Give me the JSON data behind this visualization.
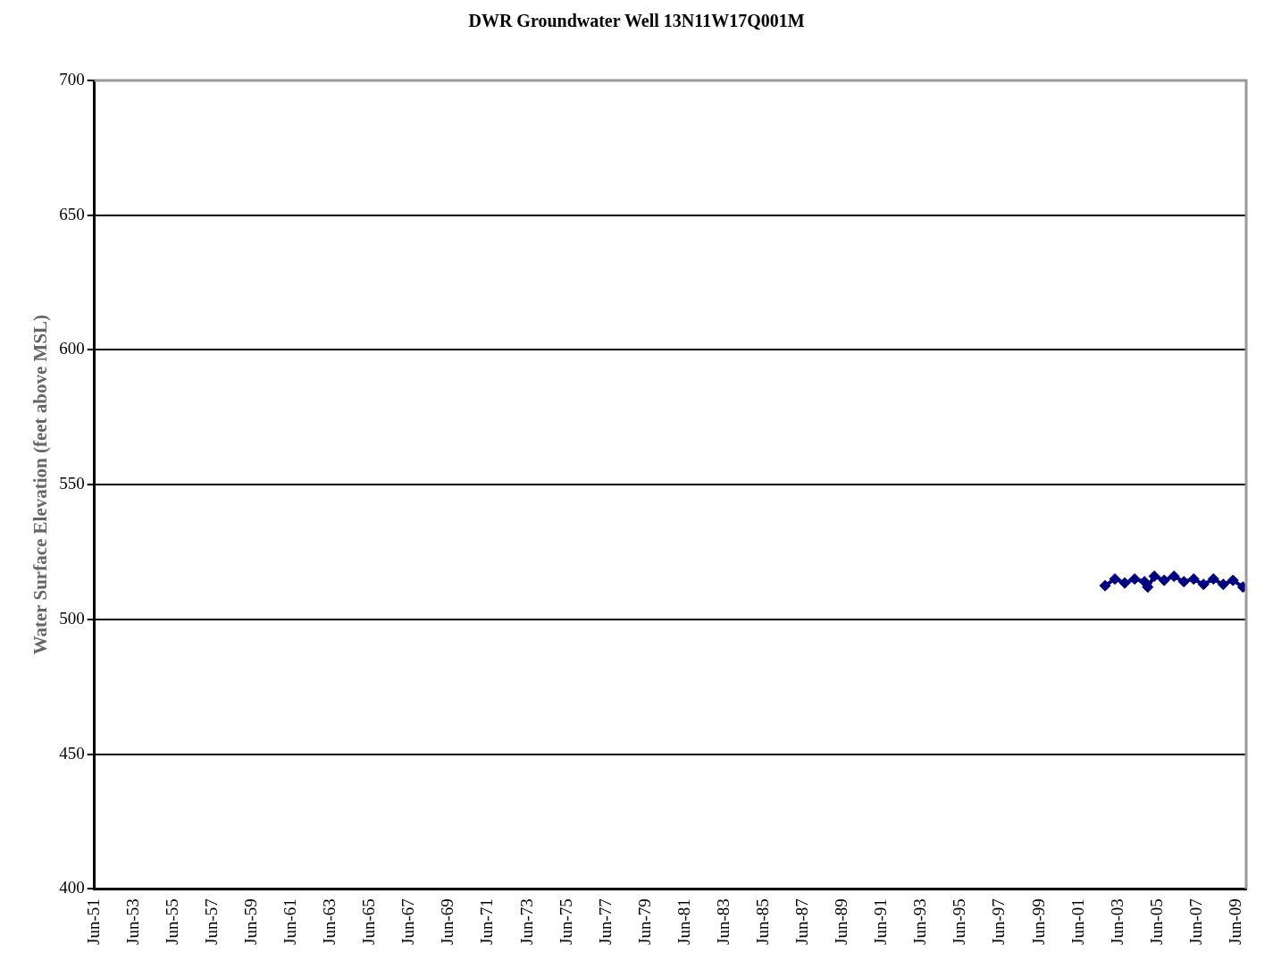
{
  "chart_data": {
    "type": "line",
    "title": "DWR Groundwater Well 13N11W17Q001M",
    "ylabel": "Water Surface Elevation (feet above MSL)",
    "x": [
      "2002-10",
      "2003-04",
      "2003-10",
      "2004-04",
      "2004-10",
      "2004-12",
      "2005-04",
      "2005-10",
      "2006-04",
      "2006-10",
      "2007-04",
      "2007-10",
      "2008-04",
      "2008-10",
      "2009-04",
      "2009-10"
    ],
    "series": [
      {
        "color": "#000080",
        "values": [
          512.5,
          515,
          513.5,
          515,
          514,
          512,
          516,
          514.5,
          516,
          514,
          515,
          513,
          515,
          513,
          514.5,
          512
        ]
      }
    ],
    "marker": "diamond",
    "grid": "y",
    "legend": false,
    "ylim": [
      400,
      700
    ],
    "yticks": [
      400,
      450,
      500,
      550,
      600,
      650,
      700
    ],
    "xlim": [
      "1951-06",
      "2009-12"
    ],
    "xticks": [
      {
        "value": "1951-06",
        "label": "Jun-51"
      },
      {
        "value": "1953-06",
        "label": "Jun-53"
      },
      {
        "value": "1955-06",
        "label": "Jun-55"
      },
      {
        "value": "1957-06",
        "label": "Jun-57"
      },
      {
        "value": "1959-06",
        "label": "Jun-59"
      },
      {
        "value": "1961-06",
        "label": "Jun-61"
      },
      {
        "value": "1963-06",
        "label": "Jun-63"
      },
      {
        "value": "1965-06",
        "label": "Jun-65"
      },
      {
        "value": "1967-06",
        "label": "Jun-67"
      },
      {
        "value": "1969-06",
        "label": "Jun-69"
      },
      {
        "value": "1971-06",
        "label": "Jun-71"
      },
      {
        "value": "1973-06",
        "label": "Jun-73"
      },
      {
        "value": "1975-06",
        "label": "Jun-75"
      },
      {
        "value": "1977-06",
        "label": "Jun-77"
      },
      {
        "value": "1979-06",
        "label": "Jun-79"
      },
      {
        "value": "1981-06",
        "label": "Jun-81"
      },
      {
        "value": "1983-06",
        "label": "Jun-83"
      },
      {
        "value": "1985-06",
        "label": "Jun-85"
      },
      {
        "value": "1987-06",
        "label": "Jun-87"
      },
      {
        "value": "1989-06",
        "label": "Jun-89"
      },
      {
        "value": "1991-06",
        "label": "Jun-91"
      },
      {
        "value": "1993-06",
        "label": "Jun-93"
      },
      {
        "value": "1995-06",
        "label": "Jun-95"
      },
      {
        "value": "1997-06",
        "label": "Jun-97"
      },
      {
        "value": "1999-06",
        "label": "Jun-99"
      },
      {
        "value": "2001-06",
        "label": "Jun-01"
      },
      {
        "value": "2003-06",
        "label": "Jun-03"
      },
      {
        "value": "2005-06",
        "label": "Jun-05"
      },
      {
        "value": "2007-06",
        "label": "Jun-07"
      },
      {
        "value": "2009-06",
        "label": "Jun-09"
      }
    ]
  }
}
